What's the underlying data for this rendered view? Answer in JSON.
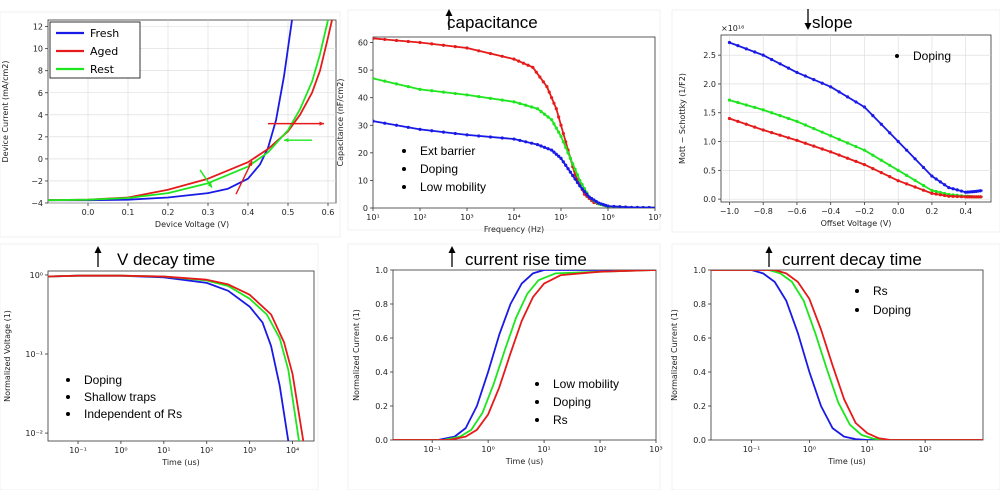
{
  "colors": {
    "fresh": "#1a1ae6",
    "aged": "#e61a1a",
    "rest": "#1ee61e"
  },
  "headers": {
    "capacitance": "capacitance",
    "slope": "slope",
    "v_decay": "V decay time",
    "rise": "current rise time",
    "decay": "current decay time"
  },
  "chart_data": [
    {
      "id": "iv",
      "type": "line",
      "xlabel": "Device Voltage (V)",
      "ylabel": "Device Current (mA/cm2)",
      "xlim": [
        -0.1,
        0.62
      ],
      "ylim": [
        -4,
        12.6
      ],
      "xticks": [
        0.0,
        0.1,
        0.2,
        0.3,
        0.4,
        0.5,
        0.6
      ],
      "xtick_labels": [
        "0.0",
        "0.1",
        "0.2",
        "0.3",
        "0.4",
        "0.5",
        "0.6"
      ],
      "yticks": [
        -4,
        -2,
        0,
        2,
        4,
        6,
        8,
        10,
        12
      ],
      "ytick_labels": [
        "−4",
        "−2",
        "0",
        "2",
        "4",
        "6",
        "8",
        "10",
        "12"
      ],
      "legend": [
        "Fresh",
        "Aged",
        "Rest"
      ],
      "series": [
        {
          "name": "Fresh",
          "x": [
            -0.1,
            0.0,
            0.1,
            0.2,
            0.3,
            0.35,
            0.4,
            0.43,
            0.45,
            0.47,
            0.49,
            0.51
          ],
          "y": [
            -3.75,
            -3.75,
            -3.7,
            -3.5,
            -3.1,
            -2.7,
            -1.8,
            -0.5,
            1.0,
            3.5,
            7.5,
            12.6
          ]
        },
        {
          "name": "Aged",
          "x": [
            -0.1,
            0.0,
            0.1,
            0.2,
            0.3,
            0.4,
            0.45,
            0.5,
            0.53,
            0.56,
            0.58,
            0.6,
            0.61
          ],
          "y": [
            -3.75,
            -3.7,
            -3.5,
            -2.8,
            -1.8,
            -0.3,
            0.9,
            2.5,
            4.0,
            6.0,
            8.0,
            11.0,
            12.6
          ]
        },
        {
          "name": "Rest",
          "x": [
            -0.1,
            0.0,
            0.1,
            0.2,
            0.3,
            0.4,
            0.45,
            0.5,
            0.53,
            0.56,
            0.58,
            0.6
          ],
          "y": [
            -3.75,
            -3.7,
            -3.55,
            -3.1,
            -2.2,
            -0.7,
            0.6,
            2.6,
            4.5,
            7.0,
            9.5,
            12.6
          ]
        }
      ]
    },
    {
      "id": "cf",
      "type": "line",
      "xlabel": "Frequency (Hz)",
      "ylabel": "Capacitance (nF/cm2)",
      "xlim": [
        1,
        7
      ],
      "ylim": [
        0,
        62
      ],
      "xticks": [
        1,
        2,
        3,
        4,
        5,
        6,
        7
      ],
      "xtick_labels": [
        "10¹",
        "10²",
        "10³",
        "10⁴",
        "10⁵",
        "10⁶",
        "10⁷"
      ],
      "yticks": [
        0,
        10,
        20,
        30,
        40,
        50,
        60
      ],
      "ytick_labels": [
        "0",
        "10",
        "20",
        "30",
        "40",
        "50",
        "60"
      ],
      "series": [
        {
          "name": "Aged",
          "x": [
            1,
            2,
            3,
            4,
            4.4,
            4.7,
            4.9,
            5.1,
            5.3,
            5.5,
            5.7,
            6.0,
            6.5,
            7.0
          ],
          "y": [
            61.5,
            60.0,
            58.0,
            54.0,
            51.0,
            44.0,
            36.0,
            24.0,
            12.0,
            5.0,
            2.0,
            0.6,
            0.2,
            0.1
          ]
        },
        {
          "name": "Rest",
          "x": [
            1,
            2,
            3,
            4,
            4.5,
            4.8,
            5.0,
            5.2,
            5.4,
            5.6,
            5.8,
            6.0,
            6.5,
            7.0
          ],
          "y": [
            47.0,
            43.0,
            41.0,
            38.5,
            36.0,
            32.0,
            26.0,
            18.0,
            10.0,
            4.0,
            1.5,
            0.6,
            0.2,
            0.1
          ]
        },
        {
          "name": "Fresh",
          "x": [
            1,
            2,
            3,
            4,
            4.5,
            4.8,
            5.0,
            5.2,
            5.4,
            5.6,
            5.8,
            6.0,
            6.5,
            7.0
          ],
          "y": [
            31.5,
            28.5,
            26.5,
            25.0,
            23.0,
            21.0,
            18.0,
            13.0,
            8.0,
            4.0,
            1.8,
            0.7,
            0.2,
            0.1
          ]
        }
      ],
      "annotations": [
        "Ext barrier",
        "Doping",
        "Low mobility"
      ]
    },
    {
      "id": "ms",
      "type": "line",
      "xlabel": "Offset Voltage (V)",
      "ylabel": "Mott − Schottky (1/F2)",
      "exponent_label": "×10¹⁶",
      "xlim": [
        -1.05,
        0.55
      ],
      "ylim": [
        -0.05,
        2.85
      ],
      "xticks": [
        -1.0,
        -0.8,
        -0.6,
        -0.4,
        -0.2,
        0.0,
        0.2,
        0.4
      ],
      "xtick_labels": [
        "−1.0",
        "−0.8",
        "−0.6",
        "−0.4",
        "−0.2",
        "0.0",
        "0.2",
        "0.4"
      ],
      "yticks": [
        0.0,
        0.5,
        1.0,
        1.5,
        2.0,
        2.5
      ],
      "ytick_labels": [
        "0.0",
        "0.5",
        "1.0",
        "1.5",
        "2.0",
        "2.5"
      ],
      "series": [
        {
          "name": "Fresh",
          "x": [
            -1.0,
            -0.8,
            -0.6,
            -0.4,
            -0.2,
            0.0,
            0.2,
            0.3,
            0.4,
            0.45,
            0.5
          ],
          "y": [
            2.72,
            2.5,
            2.2,
            1.95,
            1.6,
            1.0,
            0.4,
            0.2,
            0.12,
            0.13,
            0.15
          ]
        },
        {
          "name": "Rest",
          "x": [
            -1.0,
            -0.8,
            -0.6,
            -0.4,
            -0.2,
            0.0,
            0.2,
            0.3,
            0.4,
            0.45,
            0.5
          ],
          "y": [
            1.72,
            1.55,
            1.35,
            1.1,
            0.85,
            0.5,
            0.15,
            0.08,
            0.05,
            0.04,
            0.04
          ]
        },
        {
          "name": "Aged",
          "x": [
            -1.0,
            -0.8,
            -0.6,
            -0.4,
            -0.2,
            0.0,
            0.2,
            0.3,
            0.4,
            0.45,
            0.5
          ],
          "y": [
            1.4,
            1.2,
            1.02,
            0.82,
            0.6,
            0.32,
            0.1,
            0.05,
            0.04,
            0.04,
            0.04
          ]
        }
      ],
      "annotations": [
        "Doping"
      ]
    },
    {
      "id": "vd",
      "type": "line",
      "xlabel": "Time (us)",
      "ylabel": "Normalized Voltage (1)",
      "xlim": [
        -1.7,
        4.5
      ],
      "ylim": [
        -2.1,
        0.05
      ],
      "xticks": [
        -1,
        0,
        1,
        2,
        3,
        4
      ],
      "xtick_labels": [
        "10⁻¹",
        "10⁰",
        "10¹",
        "10²",
        "10³",
        "10⁴"
      ],
      "yticks": [
        -2,
        -1,
        0
      ],
      "ytick_labels": [
        "10⁻²",
        "10⁻¹",
        "10⁰"
      ],
      "series": [
        {
          "name": "Fresh",
          "x": [
            -1.7,
            -1.0,
            0.0,
            1.0,
            2.0,
            2.5,
            3.0,
            3.3,
            3.5,
            3.7,
            3.9
          ],
          "y": [
            -0.02,
            -0.01,
            -0.01,
            -0.03,
            -0.1,
            -0.2,
            -0.4,
            -0.6,
            -0.9,
            -1.4,
            -2.1
          ]
        },
        {
          "name": "Rest",
          "x": [
            -1.7,
            -1.0,
            0.0,
            1.0,
            2.0,
            2.5,
            3.0,
            3.4,
            3.7,
            3.9,
            4.15
          ],
          "y": [
            -0.02,
            -0.01,
            -0.01,
            -0.02,
            -0.07,
            -0.14,
            -0.3,
            -0.5,
            -0.8,
            -1.2,
            -2.1
          ]
        },
        {
          "name": "Aged",
          "x": [
            -1.7,
            -1.0,
            0.0,
            1.0,
            2.0,
            2.5,
            3.0,
            3.5,
            3.8,
            4.0,
            4.25
          ],
          "y": [
            -0.02,
            -0.01,
            -0.01,
            -0.02,
            -0.06,
            -0.12,
            -0.25,
            -0.5,
            -0.85,
            -1.25,
            -2.1
          ]
        }
      ],
      "annotations": [
        "Doping",
        "Shallow traps",
        "Independent of Rs"
      ]
    },
    {
      "id": "cr",
      "type": "line",
      "xlabel": "Time (us)",
      "ylabel": "Normalized Current (1)",
      "xlim": [
        -1.7,
        3.0
      ],
      "ylim": [
        0,
        1.0
      ],
      "xticks": [
        -1,
        0,
        1,
        2,
        3
      ],
      "xtick_labels": [
        "10⁻¹",
        "10⁰",
        "10¹",
        "10²",
        "10³"
      ],
      "yticks": [
        0.0,
        0.2,
        0.4,
        0.6,
        0.8,
        1.0
      ],
      "ytick_labels": [
        "0.0",
        "0.2",
        "0.4",
        "0.6",
        "0.8",
        "1.0"
      ],
      "series": [
        {
          "name": "Fresh",
          "x": [
            -1.7,
            -0.9,
            -0.6,
            -0.4,
            -0.2,
            0.0,
            0.2,
            0.4,
            0.6,
            0.8,
            1.0,
            2.0,
            3.0
          ],
          "y": [
            0.0,
            0.0,
            0.02,
            0.07,
            0.2,
            0.4,
            0.62,
            0.8,
            0.92,
            0.98,
            1.0,
            1.0,
            1.0
          ]
        },
        {
          "name": "Rest",
          "x": [
            -1.7,
            -0.8,
            -0.5,
            -0.3,
            -0.1,
            0.1,
            0.3,
            0.5,
            0.7,
            0.9,
            1.2,
            2.0,
            3.0
          ],
          "y": [
            0.0,
            0.0,
            0.02,
            0.06,
            0.16,
            0.33,
            0.53,
            0.72,
            0.86,
            0.94,
            0.98,
            0.99,
            1.0
          ]
        },
        {
          "name": "Aged",
          "x": [
            -1.7,
            -0.7,
            -0.4,
            -0.2,
            0.0,
            0.2,
            0.4,
            0.6,
            0.8,
            1.0,
            1.3,
            2.0,
            3.0
          ],
          "y": [
            0.0,
            0.0,
            0.02,
            0.06,
            0.15,
            0.31,
            0.51,
            0.7,
            0.84,
            0.92,
            0.97,
            0.99,
            1.0
          ]
        }
      ],
      "annotations": [
        "Low mobility",
        "Doping",
        "Rs"
      ]
    },
    {
      "id": "cd",
      "type": "line",
      "xlabel": "Time (us)",
      "ylabel": "Normalized Current (1)",
      "xlim": [
        -1.7,
        3.0
      ],
      "ylim": [
        0,
        1.0
      ],
      "xticks": [
        -1,
        0,
        1,
        2
      ],
      "xtick_labels": [
        "10⁻¹",
        "10⁰",
        "10¹",
        "10²"
      ],
      "yticks": [
        0.0,
        0.2,
        0.4,
        0.6,
        0.8,
        1.0
      ],
      "ytick_labels": [
        "0.0",
        "0.2",
        "0.4",
        "0.6",
        "0.8",
        "1.0"
      ],
      "series": [
        {
          "name": "Fresh",
          "x": [
            -1.7,
            -1.0,
            -0.8,
            -0.6,
            -0.4,
            -0.2,
            0.0,
            0.2,
            0.4,
            0.6,
            0.8,
            1.0,
            3.0
          ],
          "y": [
            1.0,
            1.0,
            0.98,
            0.93,
            0.82,
            0.63,
            0.4,
            0.2,
            0.07,
            0.02,
            0.005,
            0.0,
            0.0
          ]
        },
        {
          "name": "Rest",
          "x": [
            -1.7,
            -0.7,
            -0.5,
            -0.3,
            -0.1,
            0.1,
            0.3,
            0.5,
            0.7,
            0.9,
            1.1,
            1.3,
            3.0
          ],
          "y": [
            1.0,
            1.0,
            0.98,
            0.93,
            0.82,
            0.63,
            0.42,
            0.22,
            0.09,
            0.03,
            0.008,
            0.0,
            0.0
          ]
        },
        {
          "name": "Aged",
          "x": [
            -1.7,
            -0.6,
            -0.4,
            -0.2,
            0.0,
            0.2,
            0.4,
            0.6,
            0.8,
            1.0,
            1.2,
            1.4,
            3.0
          ],
          "y": [
            1.0,
            1.0,
            0.98,
            0.93,
            0.83,
            0.65,
            0.44,
            0.24,
            0.1,
            0.04,
            0.01,
            0.0,
            0.0
          ]
        }
      ],
      "annotations": [
        "Rs",
        "Doping"
      ]
    }
  ]
}
